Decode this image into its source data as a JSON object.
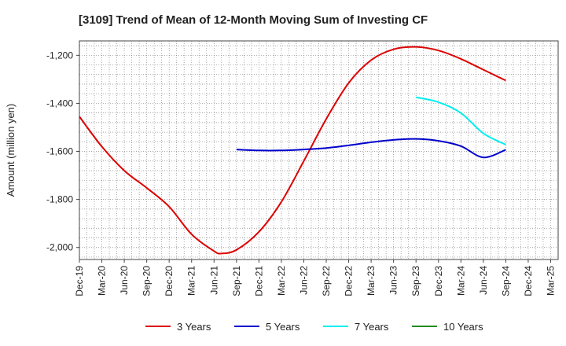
{
  "chart_data": {
    "type": "line",
    "title": "[3109]  Trend of Mean of 12-Month Moving Sum of Investing CF",
    "xlabel": "",
    "ylabel": "Amount (million yen)",
    "ylim": [
      -2050,
      -1140
    ],
    "yticks": [
      -1200,
      -1400,
      -1600,
      -1800,
      -2000
    ],
    "ytick_labels": [
      "-1,200",
      "-1,400",
      "-1,600",
      "-1,800",
      "-2,000"
    ],
    "x_start": "Dec-19",
    "x_end": "Mar-25",
    "month_count": 64,
    "xtick_labels": [
      "Dec-19",
      "Mar-20",
      "Jun-20",
      "Sep-20",
      "Dec-20",
      "Mar-21",
      "Jun-21",
      "Sep-21",
      "Dec-21",
      "Mar-22",
      "Jun-22",
      "Sep-22",
      "Dec-22",
      "Mar-23",
      "Jun-23",
      "Sep-23",
      "Dec-23",
      "Mar-24",
      "Jun-24",
      "Sep-24",
      "Dec-24",
      "Mar-25"
    ],
    "grid": true,
    "legend_position": "bottom",
    "series": [
      {
        "name": "3 Years",
        "color": "#dd0000",
        "x_month_index": [
          0,
          3,
          6,
          9,
          12,
          15,
          18,
          19,
          21,
          24,
          27,
          30,
          33,
          36,
          39,
          42,
          45,
          48,
          51,
          54,
          57
        ],
        "values": [
          -1455,
          -1580,
          -1680,
          -1752,
          -1830,
          -1945,
          -2015,
          -2025,
          -2010,
          -1935,
          -1810,
          -1640,
          -1465,
          -1315,
          -1220,
          -1175,
          -1165,
          -1180,
          -1215,
          -1260,
          -1305
        ]
      },
      {
        "name": "5 Years",
        "color": "#0000cc",
        "x_month_index": [
          21,
          24,
          27,
          30,
          33,
          36,
          39,
          42,
          45,
          48,
          51,
          54,
          57
        ],
        "values": [
          -1592,
          -1596,
          -1596,
          -1592,
          -1586,
          -1575,
          -1562,
          -1552,
          -1548,
          -1556,
          -1578,
          -1625,
          -1593
        ]
      },
      {
        "name": "7 Years",
        "color": "#00eeee",
        "x_month_index": [
          45,
          48,
          51,
          54,
          57
        ],
        "values": [
          -1375,
          -1395,
          -1440,
          -1525,
          -1572
        ]
      },
      {
        "name": "10 Years",
        "color": "#228b22",
        "x_month_index": [],
        "values": []
      }
    ]
  }
}
